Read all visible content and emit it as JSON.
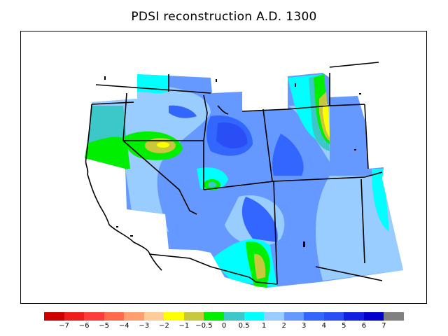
{
  "title": "PDSI reconstruction A.D. 1300",
  "legend": {
    "colors": [
      "#cc0000",
      "#ee1e1e",
      "#ff3a3a",
      "#ff6a4a",
      "#ff9e6e",
      "#ffcc99",
      "#ffff00",
      "#c8c83c",
      "#00ee00",
      "#3cc8c8",
      "#00ffff",
      "#99ccff",
      "#6699ff",
      "#3366ff",
      "#2a4ef5",
      "#1020e0",
      "#0000cc",
      "#808080"
    ],
    "labels": [
      "−7",
      "−6",
      "−5",
      "−4",
      "−3",
      "−2",
      "−1",
      "−0.5",
      "0",
      "0.5",
      "1",
      "2",
      "3",
      "4",
      "5",
      "6",
      "7"
    ]
  },
  "map": {
    "region": "Western United States",
    "field": "PDSI"
  }
}
